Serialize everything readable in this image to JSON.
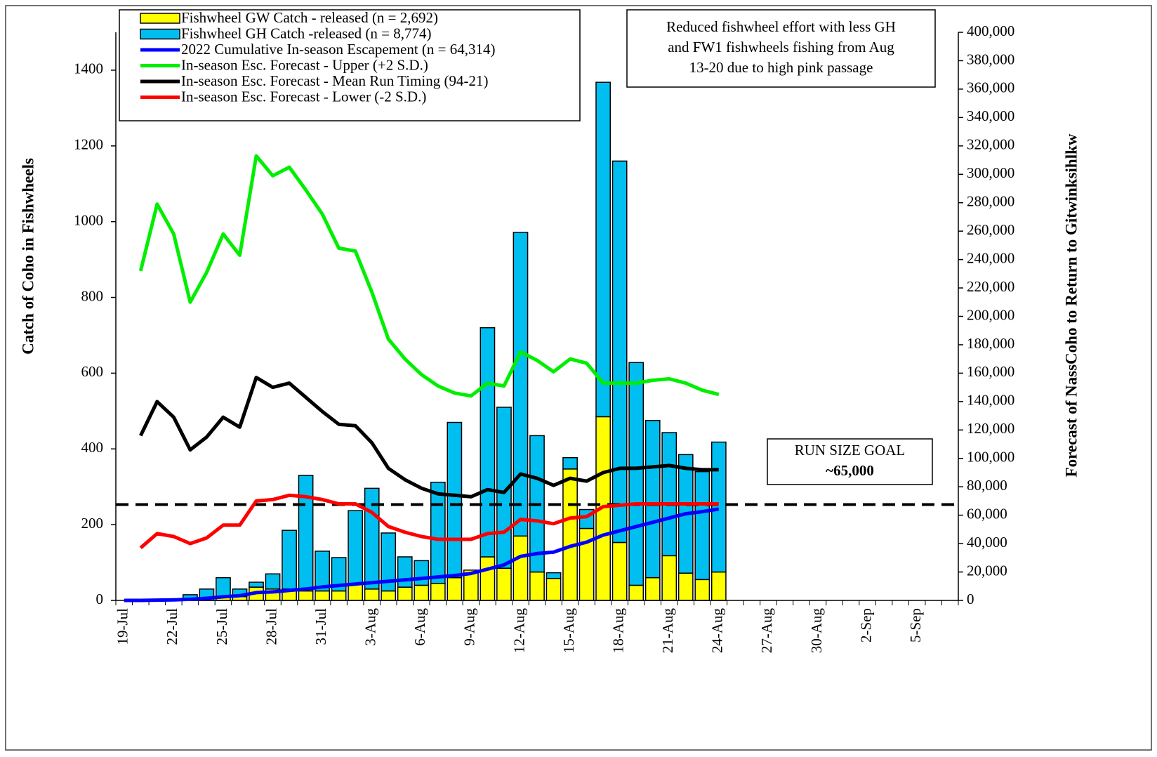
{
  "chart_data": {
    "type": "combo",
    "y_label": "Catch of Coho in  Fishwheels",
    "y2_label": "Forecast of NassCoho to Return to Gitwinksihlkw",
    "categories": [
      "19-Jul",
      null,
      null,
      "22-Jul",
      null,
      null,
      "25-Jul",
      null,
      null,
      "28-Jul",
      null,
      null,
      "31-Jul",
      null,
      null,
      "3-Aug",
      null,
      null,
      "6-Aug",
      null,
      null,
      "9-Aug",
      null,
      null,
      "12-Aug",
      null,
      null,
      "15-Aug",
      null,
      null,
      "18-Aug",
      null,
      null,
      "21-Aug",
      null,
      null,
      "24-Aug",
      null,
      null,
      "27-Aug",
      null,
      null,
      "30-Aug",
      null,
      null,
      "2-Sep",
      null,
      null,
      "5-Sep",
      null,
      null
    ],
    "ylim": [
      0,
      1500
    ],
    "yticks": [
      0,
      200,
      400,
      600,
      800,
      1000,
      1200,
      1400
    ],
    "y2lim": [
      0,
      400000
    ],
    "y2ticks": [
      0,
      {
        "value": 20000,
        "label": "20,000"
      },
      {
        "value": 40000,
        "label": "40,000"
      },
      {
        "value": 60000,
        "label": "60,000"
      },
      {
        "value": 80000,
        "label": "80,000"
      },
      {
        "value": 100000,
        "label": "100,000"
      },
      {
        "value": 120000,
        "label": "120,000"
      },
      {
        "value": 140000,
        "label": "140,000"
      },
      {
        "value": 160000,
        "label": "160,000"
      },
      {
        "value": 180000,
        "label": "180,000"
      },
      {
        "value": 200000,
        "label": "200,000"
      },
      {
        "value": 220000,
        "label": "220,000"
      },
      {
        "value": 240000,
        "label": "240,000"
      },
      {
        "value": 260000,
        "label": "260,000"
      },
      {
        "value": 280000,
        "label": "280,000"
      },
      {
        "value": 300000,
        "label": "300,000"
      },
      {
        "value": 320000,
        "label": "320,000"
      },
      {
        "value": 340000,
        "label": "340,000"
      },
      {
        "value": 360000,
        "label": "360,000"
      },
      {
        "value": 380000,
        "label": "380,000"
      },
      {
        "value": 400000,
        "label": "400,000"
      }
    ],
    "legend": "upper left",
    "series": [
      {
        "name": "Fishwheel GW Catch - released (n = 2,692)",
        "type": "bar",
        "stack": "catch",
        "color": "#ffff00",
        "values": [
          0,
          0,
          0,
          0,
          5,
          5,
          10,
          10,
          35,
          30,
          30,
          25,
          25,
          25,
          45,
          30,
          25,
          35,
          40,
          45,
          60,
          80,
          115,
          85,
          170,
          75,
          58,
          347,
          190,
          485,
          153,
          40,
          60,
          118,
          72,
          55,
          75,
          null,
          null,
          null,
          null,
          null,
          null,
          null,
          null,
          null,
          null,
          null,
          null,
          null,
          null
        ]
      },
      {
        "name": "Fishwheel GH Catch -released (n = 8,774)",
        "type": "bar",
        "stack": "catch",
        "color": "#00bff0",
        "values": [
          0,
          0,
          0,
          2,
          10,
          25,
          50,
          20,
          13,
          40,
          155,
          305,
          105,
          88,
          192,
          266,
          153,
          80,
          65,
          267,
          410,
          0,
          605,
          425,
          802,
          360,
          15,
          30,
          50,
          883,
          1007,
          588,
          415,
          325,
          313,
          285,
          343,
          null,
          null,
          null,
          null,
          null,
          null,
          null,
          null,
          null,
          null,
          null,
          null,
          null,
          null
        ]
      },
      {
        "name": "2022 Cumulative In-season Escapement (n = 64,314)",
        "type": "line",
        "axis": "y2",
        "color": "#0000ff",
        "values": [
          0,
          0,
          200,
          400,
          800,
          1500,
          2500,
          3300,
          5500,
          6000,
          7000,
          8000,
          9500,
          10500,
          11500,
          12500,
          13500,
          14500,
          15500,
          16500,
          17500,
          19000,
          22000,
          25000,
          31000,
          33000,
          34000,
          38000,
          41000,
          46000,
          49000,
          52000,
          55000,
          58000,
          61000,
          62500,
          64314,
          null,
          null,
          null,
          null,
          null,
          null,
          null,
          null,
          null,
          null,
          null,
          null,
          null,
          null
        ]
      },
      {
        "name": "In-season Esc. Forecast - Upper (+2 S.D.)",
        "type": "line",
        "axis": "y2",
        "color": "#00ee00",
        "values": [
          null,
          232000,
          279000,
          258000,
          210000,
          231000,
          258000,
          243000,
          313000,
          299000,
          305000,
          289000,
          272000,
          248000,
          246000,
          217000,
          184000,
          170000,
          159000,
          151000,
          146000,
          144000,
          153000,
          151000,
          175000,
          169000,
          161000,
          170000,
          167000,
          153000,
          153000,
          153000,
          155000,
          156000,
          153000,
          148000,
          145000,
          null,
          null,
          null,
          null,
          null,
          null,
          null,
          null,
          null,
          null,
          null,
          null,
          null,
          null
        ]
      },
      {
        "name": "In-season Esc. Forecast - Mean Run Timing (94-21)",
        "type": "line",
        "axis": "y2",
        "color": "#000000",
        "values": [
          null,
          116000,
          140000,
          129000,
          106000,
          115000,
          129000,
          122000,
          157000,
          150000,
          153000,
          143000,
          133000,
          124000,
          123000,
          111000,
          93000,
          85000,
          79000,
          75000,
          74000,
          73000,
          78000,
          76000,
          89000,
          86000,
          81000,
          86000,
          84000,
          90000,
          93000,
          93000,
          94000,
          95000,
          93000,
          92000,
          92000,
          null,
          null,
          null,
          null,
          null,
          null,
          null,
          null,
          null,
          null,
          null,
          null,
          null,
          null
        ]
      },
      {
        "name": "In-season Esc. Forecast - Lower (-2 S.D.)",
        "type": "line",
        "axis": "y2",
        "color": "#ff0000",
        "values": [
          null,
          37000,
          47000,
          45000,
          40000,
          44000,
          53000,
          53000,
          70000,
          71000,
          74000,
          73000,
          71000,
          68000,
          68000,
          62000,
          52000,
          48000,
          45000,
          43000,
          43000,
          43000,
          47000,
          48000,
          57000,
          56000,
          54000,
          58000,
          59000,
          66000,
          67000,
          68000,
          68000,
          68000,
          68000,
          68000,
          68000,
          null,
          null,
          null,
          null,
          null,
          null,
          null,
          null,
          null,
          null,
          null,
          null,
          null,
          null
        ]
      }
    ],
    "reference_line": {
      "value": 67500,
      "axis": "y2"
    },
    "annotations": [
      {
        "lines": [
          "Reduced fishwheel effort with less GH",
          "and FW1 fishwheels fishing from Aug",
          "13-20 due to high pink passage"
        ]
      },
      {
        "lines": [
          "RUN SIZE GOAL",
          "~65,000"
        ]
      }
    ]
  }
}
